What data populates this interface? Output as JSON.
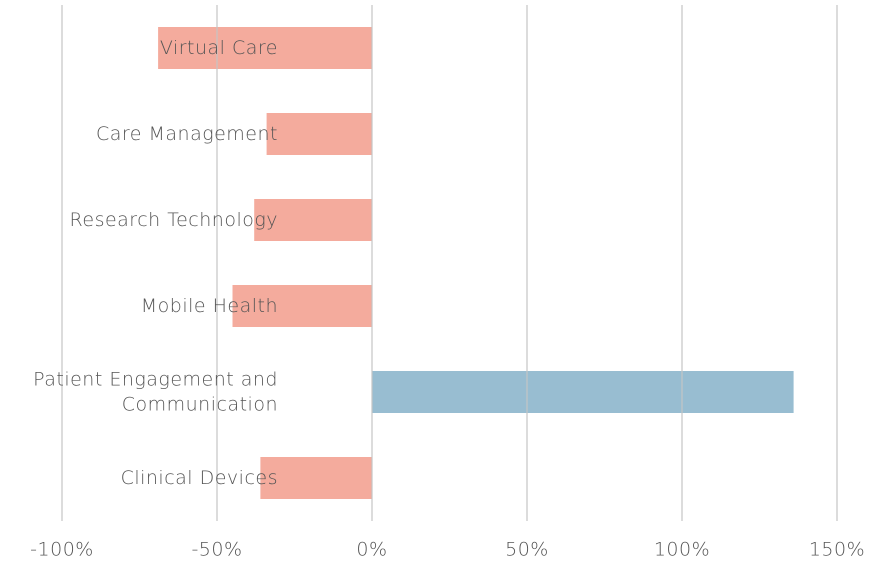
{
  "chart_data": {
    "type": "barh",
    "categories": [
      "Virtual Care",
      "Care Management",
      "Research Technology",
      "Mobile Health",
      "Patient Engagement and\nCommunication",
      "Clinical Devices"
    ],
    "values": [
      -69,
      -34,
      -38,
      -45,
      136,
      -36
    ],
    "colors": [
      "#f4ab9d",
      "#f4ab9d",
      "#f4ab9d",
      "#f4ab9d",
      "#98bdd1",
      "#f4ab9d"
    ],
    "xlim": [
      -100,
      150
    ],
    "xticks": [
      {
        "value": -100,
        "label": "-100%"
      },
      {
        "value": -50,
        "label": "-50%"
      },
      {
        "value": 0,
        "label": "0%"
      },
      {
        "value": 50,
        "label": "50%"
      },
      {
        "value": 100,
        "label": "100%"
      },
      {
        "value": 150,
        "label": "150%"
      }
    ],
    "grid": true
  }
}
